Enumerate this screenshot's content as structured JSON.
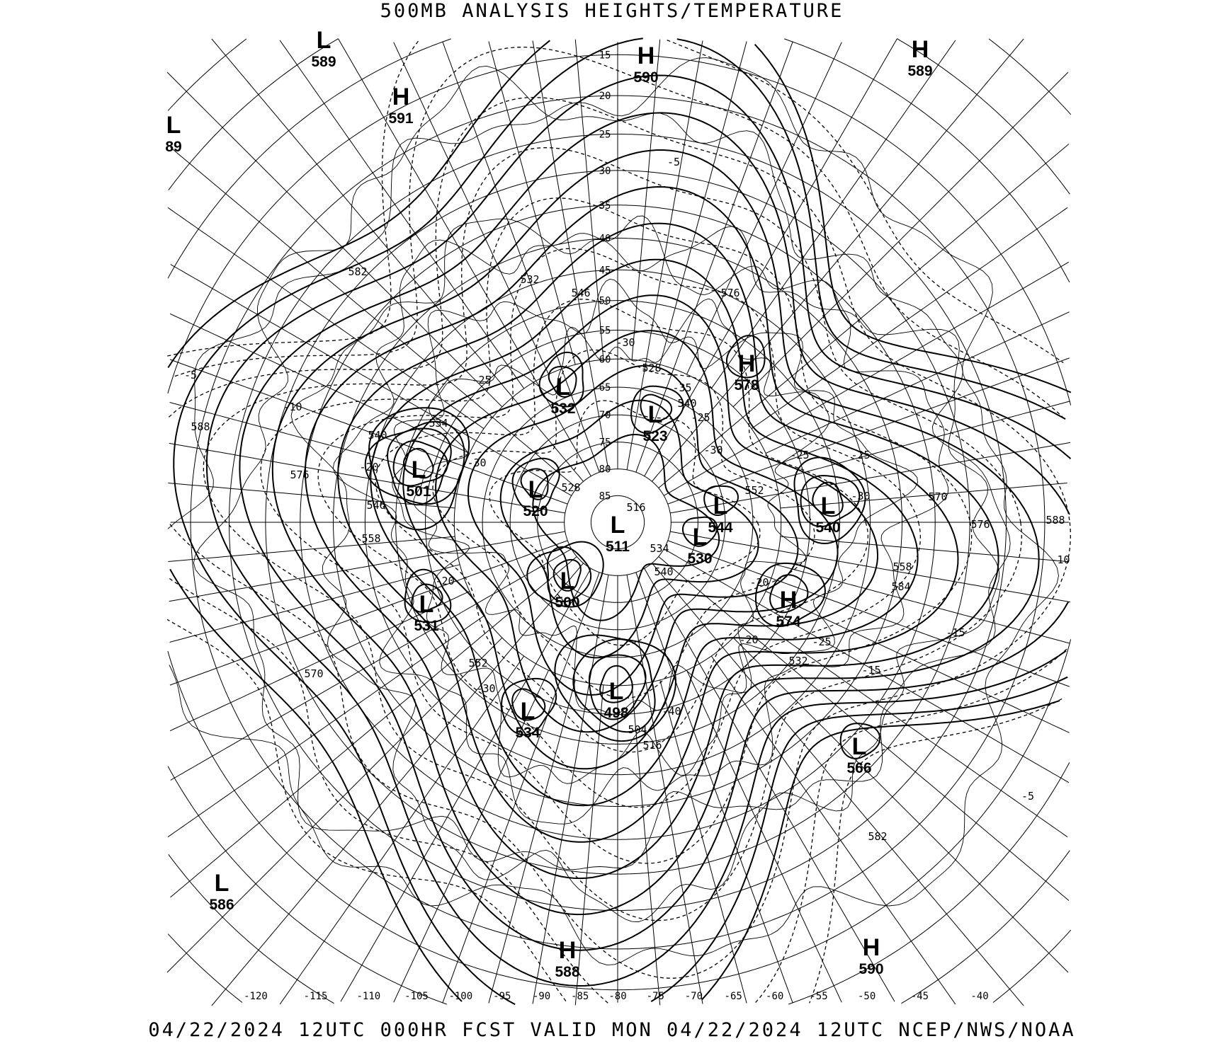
{
  "title": "500MB ANALYSIS  HEIGHTS/TEMPERATURE",
  "footer": "04/22/2024 12UTC 000HR FCST VALID MON 04/22/2024 12UTC  NCEP/NWS/NOAA",
  "map": {
    "colors": {
      "lines": "#000000",
      "background": "#ffffff"
    }
  },
  "centers": [
    {
      "type": "L",
      "value": "589"
    },
    {
      "type": "H",
      "value": "590"
    },
    {
      "type": "H",
      "value": "589"
    },
    {
      "type": "H",
      "value": "591"
    },
    {
      "type": "L",
      "value": "89"
    },
    {
      "type": "H",
      "value": "578"
    },
    {
      "type": "L",
      "value": "532"
    },
    {
      "type": "L",
      "value": "523"
    },
    {
      "type": "L",
      "value": "501"
    },
    {
      "type": "L",
      "value": "520"
    },
    {
      "type": "L",
      "value": "544"
    },
    {
      "type": "L",
      "value": "540"
    },
    {
      "type": "L",
      "value": "511"
    },
    {
      "type": "L",
      "value": "530"
    },
    {
      "type": "L",
      "value": "500"
    },
    {
      "type": "H",
      "value": "574"
    },
    {
      "type": "L",
      "value": "531"
    },
    {
      "type": "L",
      "value": "498"
    },
    {
      "type": "L",
      "value": "534"
    },
    {
      "type": "L",
      "value": "566"
    },
    {
      "type": "L",
      "value": "586"
    },
    {
      "type": "H",
      "value": "590"
    },
    {
      "type": "H",
      "value": "588"
    }
  ],
  "height_labels": [
    "582",
    "588",
    "576",
    "546",
    "558",
    "540",
    "534",
    "532",
    "546",
    "576",
    "528",
    "540",
    "552",
    "528",
    "516",
    "534",
    "540",
    "570",
    "576",
    "588",
    "558",
    "584",
    "552",
    "570",
    "532",
    "504",
    "516",
    "582"
  ],
  "temperature_labels": [
    "-5",
    "-10",
    "-25",
    "-20",
    "-30",
    "-30",
    "-35",
    "-25",
    "-30",
    "-25",
    "-25",
    "-30",
    "-20",
    "-30",
    "-20",
    "-20",
    "-25",
    "-15",
    "-15",
    "-10",
    "-5",
    "-5",
    "-40"
  ],
  "latitude_labels": [
    "15",
    "20",
    "25",
    "30",
    "35",
    "40",
    "45",
    "50",
    "55",
    "60",
    "65",
    "70",
    "75",
    "80",
    "85"
  ],
  "longitude_labels": [
    "-120",
    "-115",
    "-110",
    "-105",
    "-100",
    "-95",
    "-90",
    "-85",
    "-80",
    "-75",
    "-70",
    "-65",
    "-60",
    "-55",
    "-50",
    "-45",
    "-40"
  ]
}
